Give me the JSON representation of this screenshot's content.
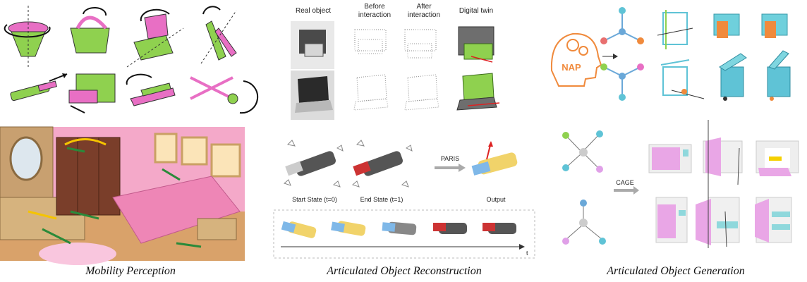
{
  "captions": {
    "mobility": "Mobility Perception",
    "reconstruction": "Articulated Object Reconstruction",
    "generation": "Articulated Object Generation"
  },
  "reconstruction": {
    "col_real": "Real object",
    "col_before_1": "Before",
    "col_before_2": "interaction",
    "col_after_1": "After",
    "col_after_2": "interaction",
    "col_twin": "Digital twin",
    "method": "PARIS",
    "start_state": "Start State (t=0)",
    "end_state": "End State (t=1)",
    "output": "Output",
    "time_axis": "t"
  },
  "generation": {
    "nap_label": "NAP",
    "cage_label": "CAGE"
  },
  "colors": {
    "green": "#8fd14f",
    "pink": "#e86fc4",
    "teal": "#5fc3d6",
    "orange": "#f08a3c"
  }
}
